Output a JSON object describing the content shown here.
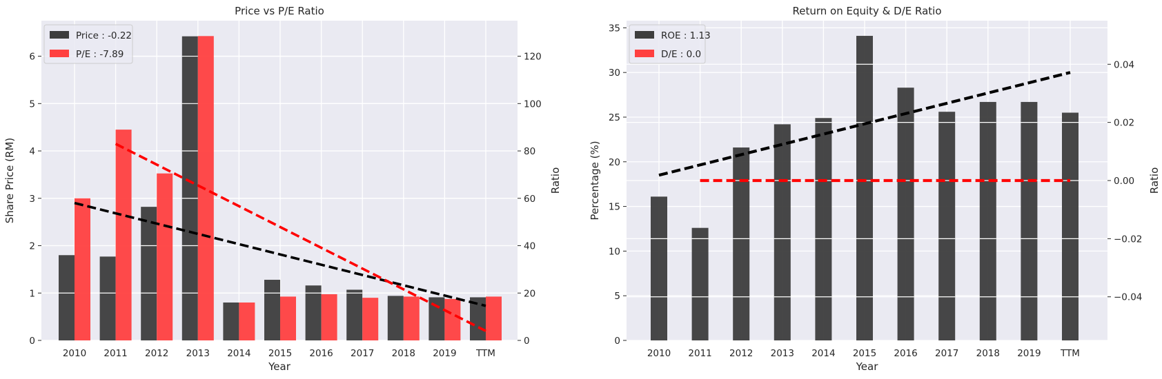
{
  "charts": [
    {
      "title": "Price vs P/E Ratio",
      "xlabel": "Year",
      "ylabel": "Share Price (RM)",
      "ylabel_right": "Ratio",
      "legend": [
        {
          "label": "Price : -0.22",
          "color": "#3d3d3d"
        },
        {
          "label": "P/E : -7.89",
          "color": "#ff4040"
        }
      ]
    },
    {
      "title": "Return on Equity & D/E Ratio",
      "xlabel": "Year",
      "ylabel": "Percentage (%)",
      "ylabel_right": "Ratio",
      "legend": [
        {
          "label": "ROE : 1.13",
          "color": "#3d3d3d"
        },
        {
          "label": "D/E : 0.0",
          "color": "#ff4040"
        }
      ]
    }
  ],
  "chart_data": [
    {
      "type": "bar",
      "title": "Price vs P/E Ratio",
      "xlabel": "Year",
      "ylabel": "Share Price (RM)",
      "ylabel_right": "Ratio",
      "categories": [
        "2010",
        "2011",
        "2012",
        "2013",
        "2014",
        "2015",
        "2016",
        "2017",
        "2018",
        "2019",
        "TTM"
      ],
      "ylim": [
        0,
        6.75
      ],
      "ylim_right": [
        0,
        135
      ],
      "yticks": [
        0,
        1,
        2,
        3,
        4,
        5,
        6
      ],
      "yticks_right": [
        0,
        20,
        40,
        60,
        80,
        100,
        120
      ],
      "series": [
        {
          "name": "Price : -0.22",
          "axis": "left",
          "color": "#3d3d3d",
          "values": [
            1.8,
            1.77,
            2.82,
            6.42,
            0.8,
            1.28,
            1.16,
            1.07,
            0.94,
            0.91,
            0.91
          ]
        },
        {
          "name": "P/E : -7.89",
          "axis": "right",
          "color": "#ff4040",
          "values": [
            60,
            89,
            70.5,
            128.5,
            16,
            18.5,
            19.5,
            18,
            18.5,
            17.5,
            18.5
          ]
        }
      ],
      "trendlines": [
        {
          "axis": "left",
          "color": "#000000",
          "style": "dashed",
          "from": [
            "2010",
            2.9
          ],
          "to": [
            "TTM",
            0.73
          ]
        },
        {
          "axis": "right",
          "color": "#ff0000",
          "style": "dashed",
          "from": [
            "2011",
            83
          ],
          "to": [
            "TTM",
            4
          ]
        }
      ],
      "grid": true,
      "legend_position": "top-left"
    },
    {
      "type": "bar",
      "title": "Return on Equity & D/E Ratio",
      "xlabel": "Year",
      "ylabel": "Percentage (%)",
      "ylabel_right": "Ratio",
      "categories": [
        "2010",
        "2011",
        "2012",
        "2013",
        "2014",
        "2015",
        "2016",
        "2017",
        "2018",
        "2019",
        "TTM"
      ],
      "ylim": [
        0,
        35.8
      ],
      "ylim_right": [
        -0.055,
        0.055
      ],
      "yticks": [
        0,
        5,
        10,
        15,
        20,
        25,
        30,
        35
      ],
      "yticks_right": [
        -0.04,
        -0.02,
        0.0,
        0.02,
        0.04
      ],
      "series": [
        {
          "name": "ROE : 1.13",
          "axis": "left",
          "color": "#3d3d3d",
          "values": [
            16.1,
            12.6,
            21.6,
            24.2,
            24.9,
            34.1,
            28.3,
            25.6,
            26.7,
            26.7,
            25.5
          ]
        },
        {
          "name": "D/E : 0.0",
          "axis": "right",
          "color": "#ff4040",
          "values": [
            0,
            0,
            0,
            0,
            0,
            0,
            0,
            0,
            0,
            0,
            0
          ]
        }
      ],
      "trendlines": [
        {
          "axis": "left",
          "color": "#000000",
          "style": "dashed",
          "from": [
            "2010",
            18.5
          ],
          "to": [
            "TTM",
            30.0
          ]
        },
        {
          "axis": "right",
          "color": "#ff0000",
          "style": "dashed",
          "from": [
            "2011",
            0.0
          ],
          "to": [
            "TTM",
            0.0
          ]
        }
      ],
      "grid": true,
      "legend_position": "top-left"
    }
  ]
}
